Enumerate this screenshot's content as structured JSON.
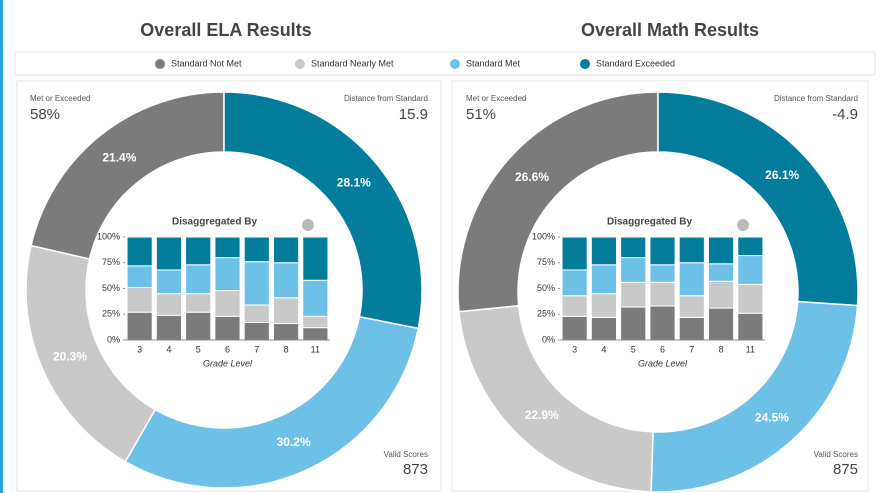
{
  "chart_data": [
    {
      "type": "pie",
      "title": "Overall ELA Results",
      "categories": [
        "Standard Not Met",
        "Standard Nearly Met",
        "Standard Met",
        "Standard Exceeded"
      ],
      "values": [
        21.4,
        20.3,
        30.2,
        28.1
      ],
      "value_labels": [
        "21.4%",
        "20.3%",
        "30.2%",
        "28.1%"
      ],
      "colors": [
        "#7b7b7b",
        "#c9c9c9",
        "#6ec1e6",
        "#047c9c"
      ],
      "kpis": [
        {
          "label": "Met or Exceeded",
          "value": 58,
          "value_label": "58%"
        },
        {
          "label": "Distance from Standard",
          "value": 15.9
        },
        {
          "label": "Valid Scores",
          "value": 873
        }
      ]
    },
    {
      "type": "bar",
      "title": "Disaggregated By",
      "x_label": "Grade Level",
      "stacked": true,
      "categories": [
        "3",
        "4",
        "5",
        "6",
        "7",
        "8",
        "11"
      ],
      "series": [
        {
          "name": "Standard Not Met",
          "color": "#7b7b7b",
          "values": [
            27,
            24,
            27,
            23,
            17,
            16,
            12
          ]
        },
        {
          "name": "Standard Nearly Met",
          "color": "#c9c9c9",
          "values": [
            24,
            21,
            18,
            25,
            17,
            25,
            11
          ]
        },
        {
          "name": "Standard Met",
          "color": "#6ec1e6",
          "values": [
            21,
            23,
            28,
            32,
            42,
            34,
            35
          ]
        },
        {
          "name": "Standard Exceeded",
          "color": "#047c9c",
          "values": [
            28,
            32,
            27,
            20,
            24,
            25,
            42
          ]
        }
      ],
      "ylim": [
        0,
        100
      ],
      "yticks": [
        {
          "value": 0,
          "label": "0%"
        },
        {
          "value": 25,
          "label": "25%"
        },
        {
          "value": 50,
          "label": "50%"
        },
        {
          "value": 75,
          "label": "75%"
        },
        {
          "value": 100,
          "label": "100%"
        }
      ]
    },
    {
      "type": "pie",
      "title": "Overall Math Results",
      "categories": [
        "Standard Not Met",
        "Standard Nearly Met",
        "Standard Met",
        "Standard Exceeded"
      ],
      "values": [
        26.6,
        22.9,
        24.5,
        26.1
      ],
      "value_labels": [
        "26.6%",
        "22.9%",
        "24.5%",
        "26.1%"
      ],
      "colors": [
        "#7b7b7b",
        "#c9c9c9",
        "#6ec1e6",
        "#047c9c"
      ],
      "kpis": [
        {
          "label": "Met or Exceeded",
          "value": 51,
          "value_label": "51%"
        },
        {
          "label": "Distance from Standard",
          "value": -4.9
        },
        {
          "label": "Valid Scores",
          "value": 875
        }
      ]
    },
    {
      "type": "bar",
      "title": "Disaggregated By",
      "x_label": "Grade Level",
      "stacked": true,
      "categories": [
        "3",
        "4",
        "5",
        "6",
        "7",
        "8",
        "11"
      ],
      "series": [
        {
          "name": "Standard Not Met",
          "color": "#7b7b7b",
          "values": [
            23,
            22,
            32,
            33,
            22,
            31,
            26
          ]
        },
        {
          "name": "Standard Nearly Met",
          "color": "#c9c9c9",
          "values": [
            20,
            23,
            24,
            23,
            21,
            26,
            28
          ]
        },
        {
          "name": "Standard Met",
          "color": "#6ec1e6",
          "values": [
            25,
            28,
            24,
            17,
            32,
            17,
            28
          ]
        },
        {
          "name": "Standard Exceeded",
          "color": "#047c9c",
          "values": [
            32,
            27,
            20,
            27,
            25,
            26,
            18
          ]
        }
      ],
      "ylim": [
        0,
        100
      ],
      "yticks": [
        {
          "value": 0,
          "label": "0%"
        },
        {
          "value": 25,
          "label": "25%"
        },
        {
          "value": 50,
          "label": "50%"
        },
        {
          "value": 75,
          "label": "75%"
        },
        {
          "value": 100,
          "label": "100%"
        }
      ]
    }
  ]
}
